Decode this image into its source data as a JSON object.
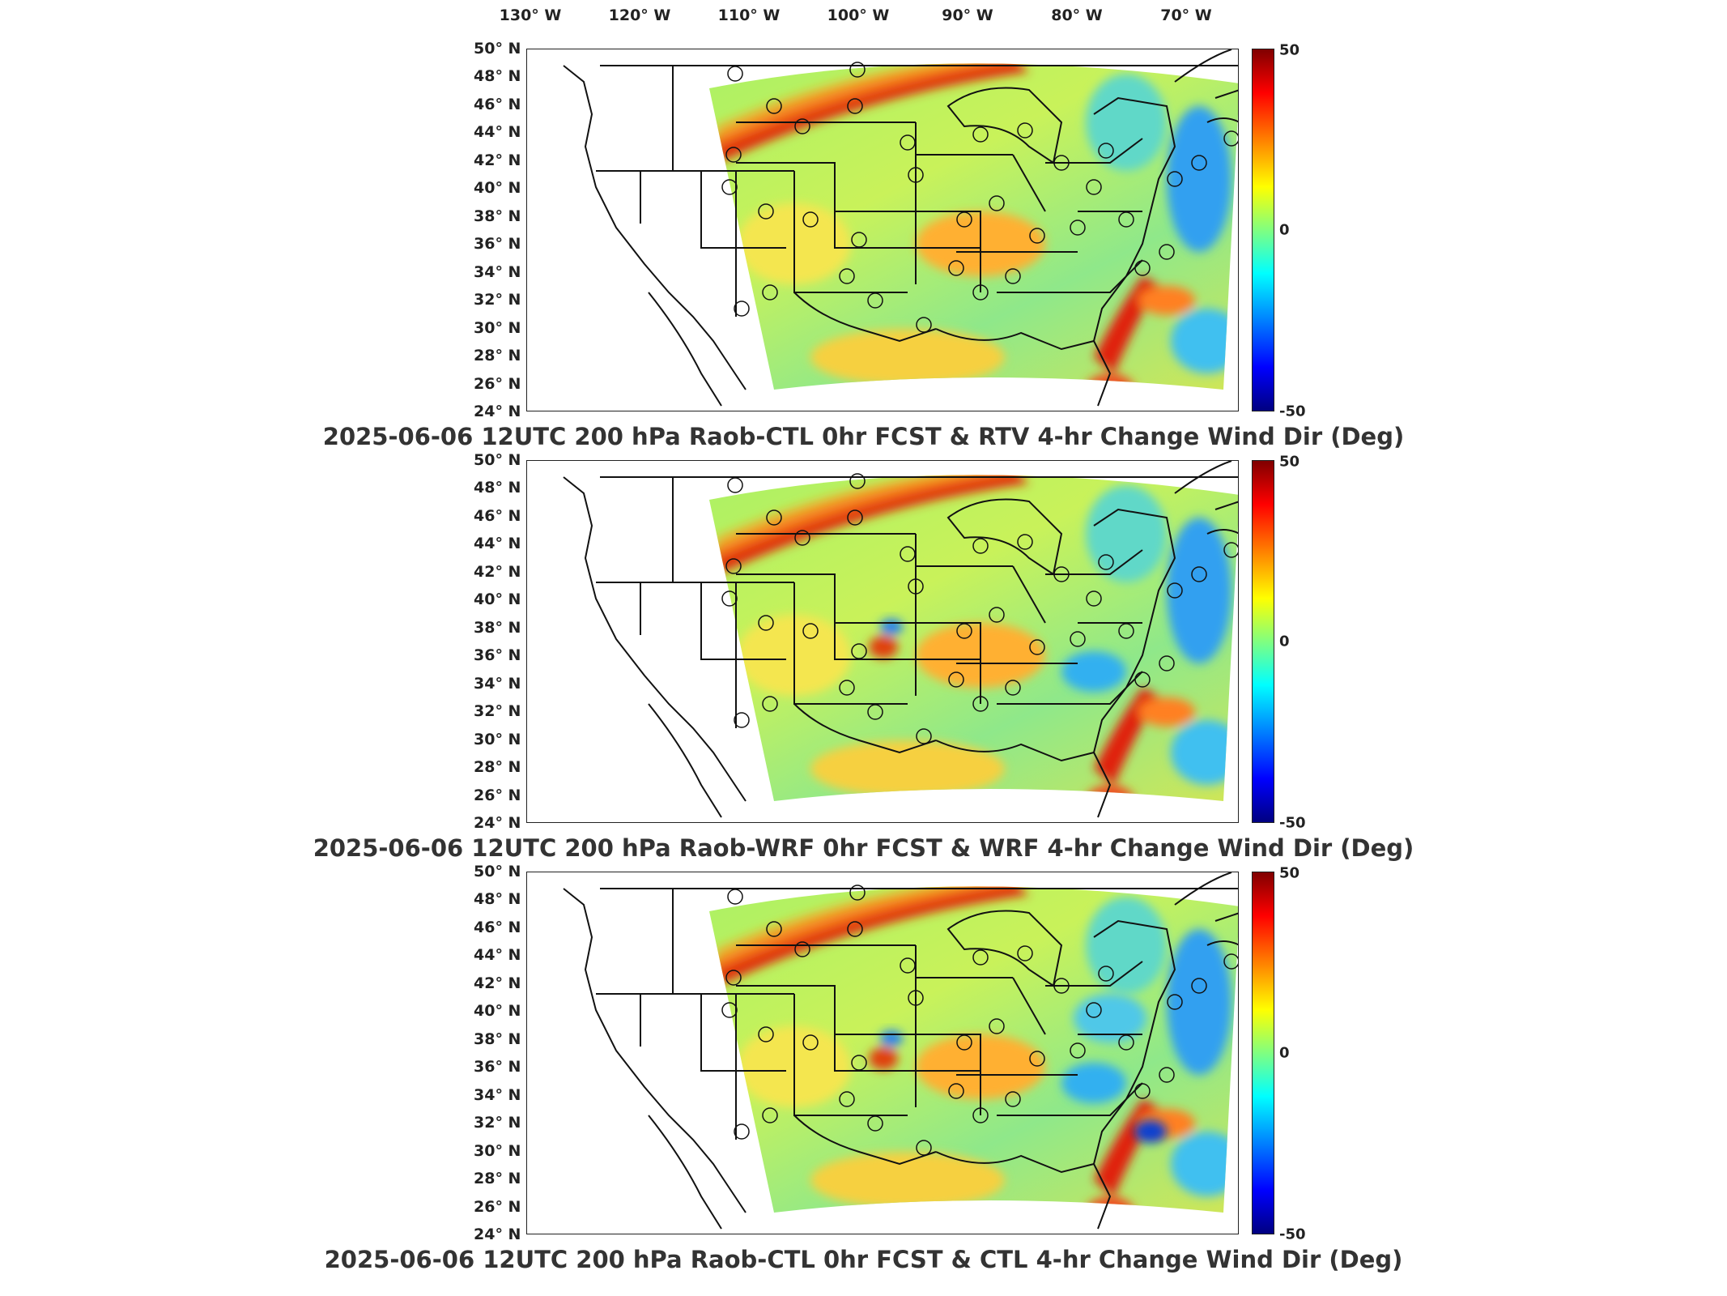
{
  "lon_labels": [
    "130° W",
    "120° W",
    "110° W",
    "100° W",
    "90° W",
    "80° W",
    "70° W"
  ],
  "lat_labels": [
    "50° N",
    "48° N",
    "46° N",
    "44° N",
    "42° N",
    "40° N",
    "38° N",
    "36° N",
    "34° N",
    "32° N",
    "30° N",
    "28° N",
    "26° N",
    "24° N"
  ],
  "colorbar": {
    "max": "50",
    "mid": "0",
    "min": "-50"
  },
  "panels": [
    {
      "title": "2025-06-06 12UTC 200 hPa Raob-CTL 0hr FCST & RTV 4-hr Change Wind Dir (Deg)"
    },
    {
      "title": "2025-06-06 12UTC 200 hPa Raob-WRF 0hr FCST & WRF 4-hr Change Wind Dir (Deg)"
    },
    {
      "title": "2025-06-06 12UTC 200 hPa Raob-CTL 0hr FCST & CTL 4-hr Change Wind Dir (Deg)"
    }
  ]
}
